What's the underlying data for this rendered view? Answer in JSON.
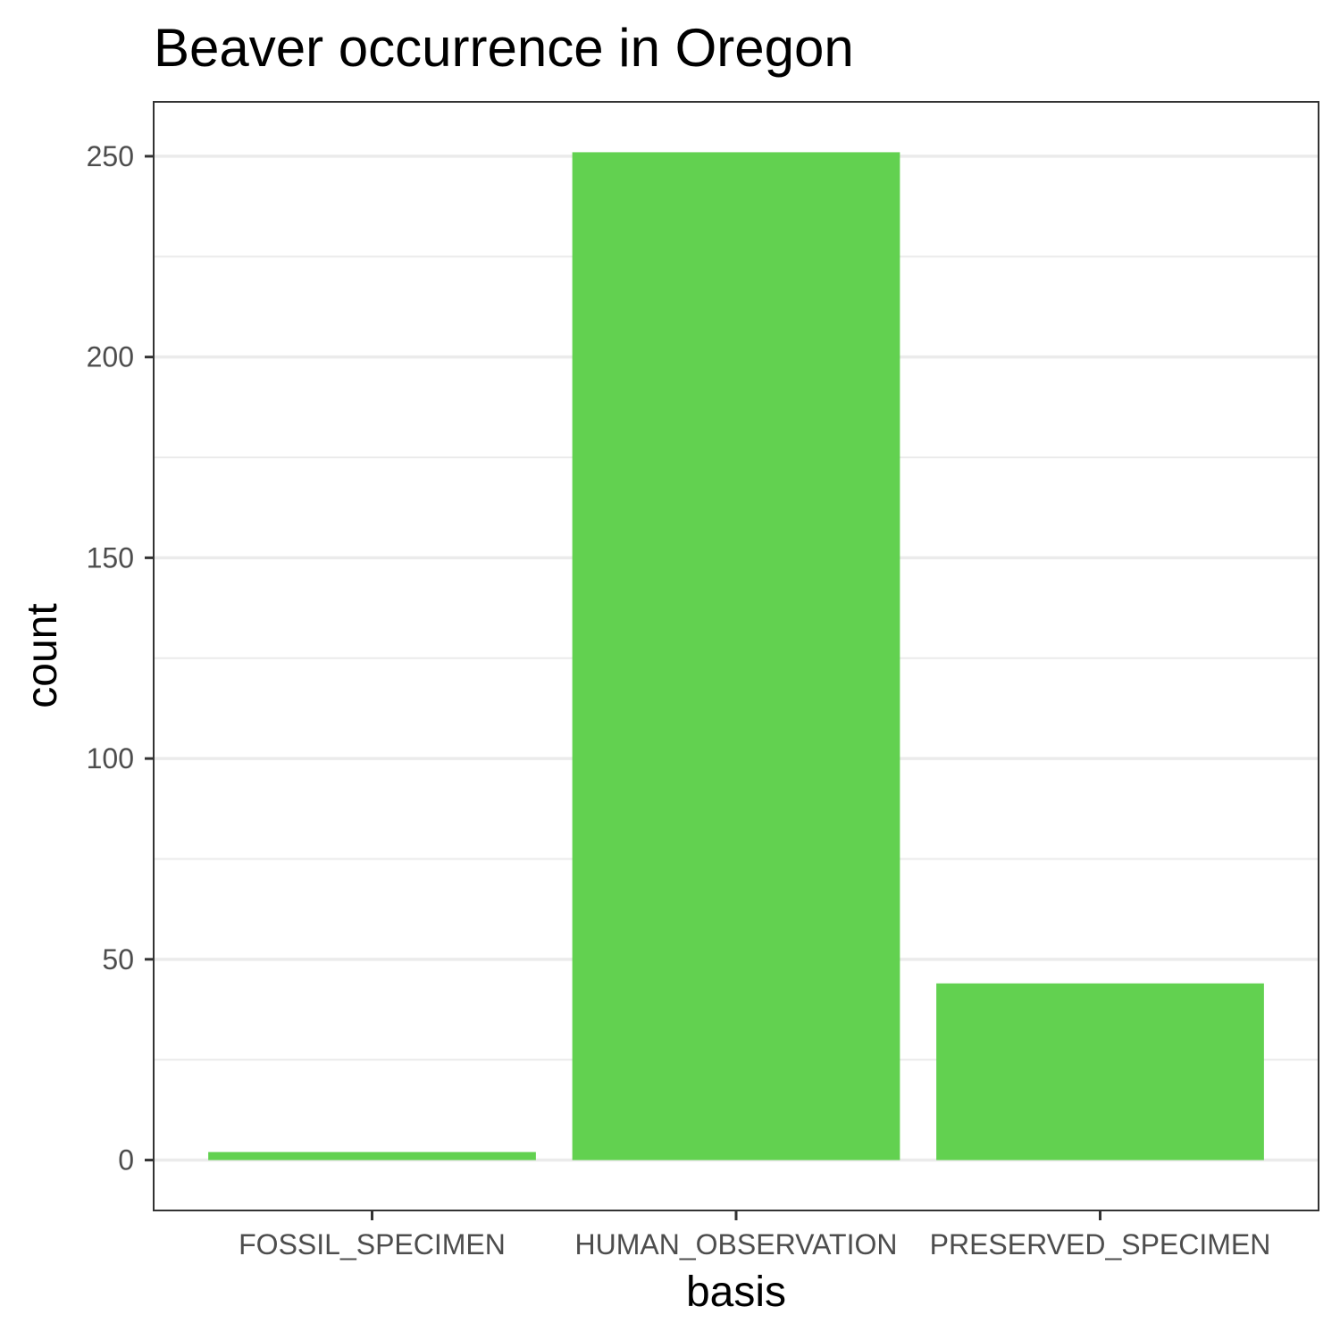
{
  "chart_data": {
    "type": "bar",
    "title": "Beaver occurrence in Oregon",
    "xlabel": "basis",
    "ylabel": "count",
    "categories": [
      "FOSSIL_SPECIMEN",
      "HUMAN_OBSERVATION",
      "PRESERVED_SPECIMEN"
    ],
    "values": [
      2,
      251,
      44
    ],
    "ylim": [
      -12.55,
      263.55
    ],
    "yticks": [
      0,
      50,
      100,
      150,
      200,
      250
    ],
    "ytick_labels": [
      "0",
      "50",
      "100",
      "150",
      "200",
      "250"
    ],
    "grid": true,
    "bar_color": "#62d150"
  }
}
